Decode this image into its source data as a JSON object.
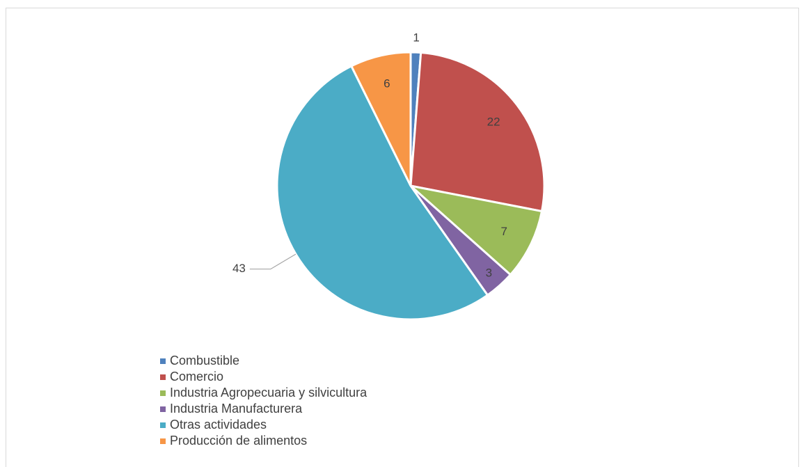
{
  "chart_data": {
    "type": "pie",
    "title": "",
    "categories": [
      "Combustible",
      "Comercio",
      "Industria Agropecuaria y silvicultura",
      "Industria Manufacturera",
      "Otras actividades",
      "Producción de alimentos"
    ],
    "values": [
      1,
      22,
      7,
      3,
      43,
      6
    ],
    "colors": [
      "#4f81bd",
      "#c0504d",
      "#9bbb59",
      "#8064a2",
      "#4bacc6",
      "#f79646"
    ],
    "legend_position": "bottom-left",
    "start_angle": "12 o'clock, clockwise"
  }
}
